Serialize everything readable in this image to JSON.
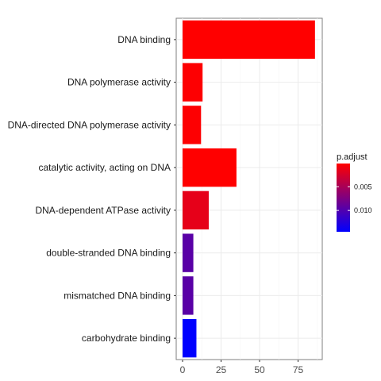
{
  "chart_data": {
    "type": "bar",
    "orientation": "horizontal",
    "categories": [
      "DNA binding",
      "DNA polymerase activity",
      "DNA-directed DNA polymerase activity",
      "catalytic activity, acting on DNA",
      "DNA-dependent ATPase activity",
      "double-stranded DNA binding",
      "mismatched DNA binding",
      "carbohydrate binding"
    ],
    "values": [
      86,
      13,
      12,
      35,
      17,
      7,
      7,
      9
    ],
    "p_adjust": [
      0.0001,
      0.0002,
      0.0002,
      0.0001,
      0.0015,
      0.0095,
      0.0095,
      0.0145
    ],
    "xlim": [
      0,
      90
    ],
    "x_ticks": [
      0,
      25,
      50,
      75
    ],
    "x_tick_labels": [
      "0",
      "25",
      "50",
      "75"
    ],
    "xlabel": "",
    "ylabel": "",
    "title": "",
    "grid": true,
    "colors": {
      "low": "#ff0000",
      "high": "#0000ff"
    },
    "legend": {
      "title": "p.adjust",
      "placement": "right",
      "range": [
        0.0001,
        0.0145
      ],
      "ticks": [
        0.005,
        0.01
      ],
      "tick_labels": [
        "0.005",
        "0.010"
      ]
    }
  }
}
